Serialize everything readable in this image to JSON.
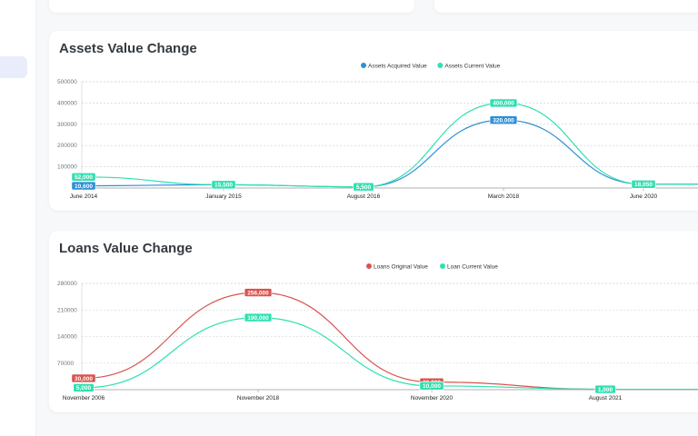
{
  "colors": {
    "assets_acquired": "#2e8fd8",
    "assets_current": "#2fe0b0",
    "loans_original": "#d9534f",
    "loans_current": "#2fe0b0"
  },
  "charts": {
    "assets": {
      "title": "Assets Value Change"
    },
    "loans": {
      "title": "Loans Value Change"
    }
  },
  "chart_data": [
    {
      "type": "line",
      "title": "Assets Value Change",
      "categories": [
        "June 2014",
        "January 2015",
        "August 2016",
        "March 2018",
        "June 2020"
      ],
      "series": [
        {
          "name": "Assets Acquired Value",
          "values": [
            10600,
            15500,
            5500,
            320000,
            18050
          ]
        },
        {
          "name": "Assets Current Value",
          "values": [
            52000,
            15500,
            5500,
            400000,
            18050
          ]
        }
      ],
      "data_labels": [
        [
          "10,600",
          "",
          "",
          "320,000",
          ""
        ],
        [
          "52,000",
          "15,500",
          "5,500",
          "400,000",
          "18,050"
        ]
      ],
      "yticks": [
        "100000",
        "200000",
        "300000",
        "400000",
        "500000"
      ],
      "ylim": [
        0,
        500000
      ],
      "legend": "top-center",
      "grid": true,
      "smooth": true
    },
    {
      "type": "line",
      "title": "Loans Value Change",
      "categories": [
        "November 2006",
        "November 2018",
        "November 2020",
        "August 2021"
      ],
      "series": [
        {
          "name": "Loans Original Value",
          "values": [
            30000,
            256000,
            20000,
            1000
          ]
        },
        {
          "name": "Loan Current Value",
          "values": [
            5000,
            190000,
            10000,
            1000
          ]
        }
      ],
      "data_labels": [
        [
          "30,000",
          "256,000",
          "20,000",
          ""
        ],
        [
          "5,000",
          "190,000",
          "10,000",
          "1,000"
        ]
      ],
      "yticks": [
        "70000",
        "140000",
        "210000",
        "280000"
      ],
      "ylim": [
        0,
        280000
      ],
      "legend": "top-center",
      "grid": true,
      "smooth": true
    }
  ]
}
